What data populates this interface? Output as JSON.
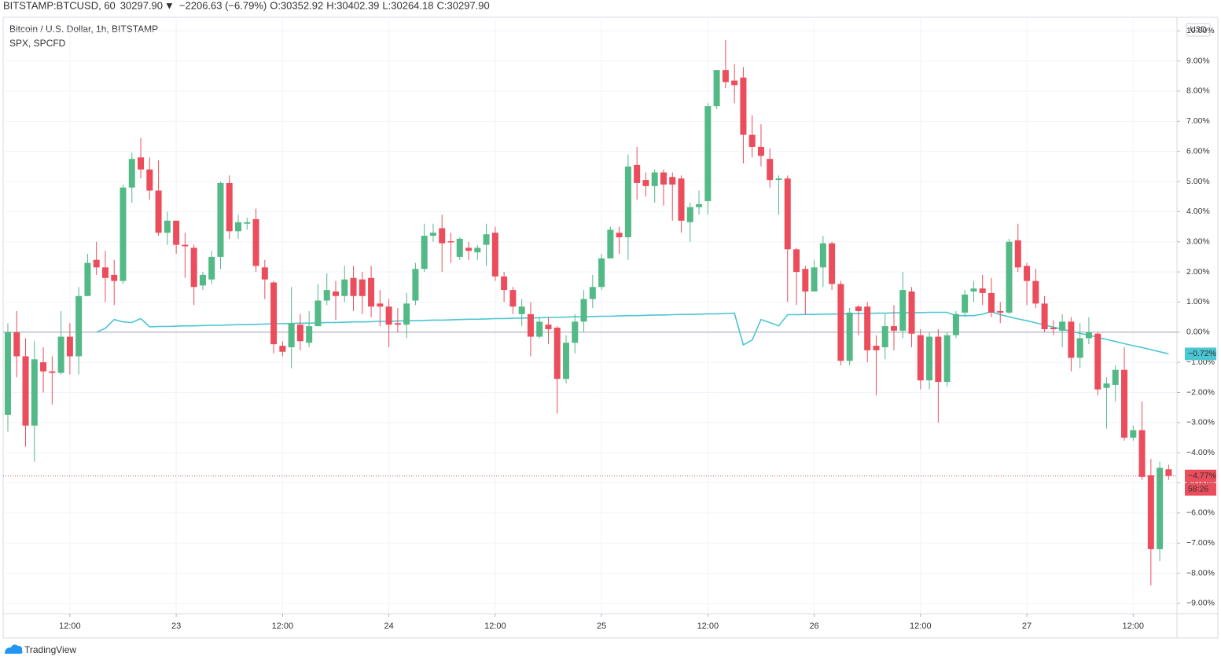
{
  "header": {
    "symbol": "BITSTAMP:BTCUSD, 60",
    "price": "30297.90",
    "arrow": "▼",
    "change": "−2206.63 (−6.79%)",
    "ohlc": [
      {
        "key": "O:",
        "text": "30352.92"
      },
      {
        "key": "H:",
        "text": "30402.39"
      },
      {
        "key": "L:",
        "text": "30264.18"
      },
      {
        "key": "C:",
        "text": "30297.90"
      }
    ]
  },
  "brand": "TradingView",
  "chart_data": {
    "type": "candlestick",
    "unit": "USD",
    "grid": true,
    "ylim": [
      -9.34,
      10.45
    ],
    "yticks": [
      {
        "value": 10,
        "label": "10.00%"
      },
      {
        "value": 9,
        "label": "9.00%"
      },
      {
        "value": 8,
        "label": "8.00%"
      },
      {
        "value": 7,
        "label": "7.00%"
      },
      {
        "value": 6,
        "label": "6.00%"
      },
      {
        "value": 5,
        "label": "5.00%"
      },
      {
        "value": 4,
        "label": "4.00%"
      },
      {
        "value": 3,
        "label": "3.00%"
      },
      {
        "value": 2,
        "label": "2.00%"
      },
      {
        "value": 1,
        "label": "1.00%"
      },
      {
        "value": 0,
        "label": "0.00%"
      },
      {
        "value": -1,
        "label": "−1.00%"
      },
      {
        "value": -2,
        "label": "−2.00%"
      },
      {
        "value": -3,
        "label": "−3.00%"
      },
      {
        "value": -4,
        "label": "−4.00%"
      },
      {
        "value": -5,
        "label": "−5.00%"
      },
      {
        "value": -6,
        "label": "−6.00%"
      },
      {
        "value": -7,
        "label": "−7.00%"
      },
      {
        "value": -8,
        "label": "−8.00%"
      },
      {
        "value": -9,
        "label": "−9.00%"
      }
    ],
    "categories": [
      null,
      null,
      null,
      null,
      null,
      null,
      null,
      "12:00",
      null,
      null,
      null,
      null,
      null,
      null,
      null,
      null,
      null,
      null,
      null,
      "23",
      null,
      null,
      null,
      null,
      null,
      null,
      null,
      null,
      null,
      null,
      null,
      "12:00",
      null,
      null,
      null,
      null,
      null,
      null,
      null,
      null,
      null,
      null,
      null,
      "24",
      null,
      null,
      null,
      null,
      null,
      null,
      null,
      null,
      null,
      null,
      null,
      "12:00",
      null,
      null,
      null,
      null,
      null,
      null,
      null,
      null,
      null,
      null,
      null,
      "25",
      null,
      null,
      null,
      null,
      null,
      null,
      null,
      null,
      null,
      null,
      null,
      "12:00",
      null,
      null,
      null,
      null,
      null,
      null,
      null,
      null,
      null,
      null,
      null,
      "26",
      null,
      null,
      null,
      null,
      null,
      null,
      null,
      null,
      null,
      null,
      null,
      "12:00",
      null,
      null,
      null,
      null,
      null,
      null,
      null,
      null,
      null,
      null,
      null,
      "27",
      null,
      null,
      null,
      null,
      null,
      null,
      null,
      null,
      null,
      null,
      null,
      "12:00",
      null,
      null,
      null,
      null
    ],
    "series": [
      {
        "name": "Bitcoin / U.S. Dollar, 1h, BITSTAMP",
        "type": "candlestick",
        "up_color": "#53b987",
        "down_color": "#eb4d5c",
        "open": [
          -2.74,
          0,
          -0.8,
          -3.1,
          -1.0,
          -1.3,
          -1.35,
          -0.15,
          -0.8,
          1.2,
          2.4,
          2.15,
          1.9,
          1.7,
          4.8,
          5.8,
          5.4,
          4.7,
          3.3,
          3.7,
          2.9,
          2.8,
          1.55,
          1.75,
          2.5,
          4.95,
          3.35,
          3.6,
          3.75,
          2.15,
          1.65,
          -0.45,
          -0.5,
          0.25,
          -0.35,
          0.2,
          1.05,
          1.35,
          1.2,
          1.8,
          1.75,
          1.8,
          0.95,
          0.85,
          0.3,
          0.25,
          1.05,
          2.1,
          3.2,
          3.45,
          3.02,
          2.5,
          2.8,
          2.65,
          2.9,
          3.3,
          1.85,
          1.4,
          0.6,
          0.6,
          -0.15,
          0.25,
          0.15,
          -1.55,
          -0.35,
          0.35,
          1.1,
          1.5,
          2.45,
          3.3,
          3.15,
          5.55,
          5.05,
          4.85,
          5.3,
          5.15,
          5.1,
          3.65,
          4.15,
          4.35,
          7.5,
          8.7,
          8.35,
          8.45,
          6.55,
          6.15,
          5.75,
          5.05,
          5.1,
          2.75,
          2.1,
          1.35,
          2.15,
          2.95,
          1.6,
          -0.95,
          0.85,
          0.85,
          -0.45,
          -0.5,
          0.2,
          0.05,
          1.35,
          -0.1,
          -1.6,
          -0.15,
          -1.65,
          -0.1,
          0.65,
          1.35,
          1.45,
          1.3,
          0.7,
          0.65,
          3.05,
          2.2,
          1.7,
          0.95,
          0.15,
          0.05,
          0.35,
          -0.85,
          -0.2,
          -0.05,
          -1.85,
          -1.75,
          -1.25,
          -3.5,
          -3.25,
          -4.75,
          -7.2,
          -4.55
        ],
        "high": [
          0.3,
          0.7,
          -0.2,
          -0.3,
          -0.5,
          -0.8,
          0.7,
          0.3,
          1.5,
          2.6,
          3.0,
          2.7,
          2.4,
          4.9,
          5.95,
          6.45,
          5.8,
          5.7,
          4.0,
          3.7,
          3.3,
          2.9,
          2.0,
          2.7,
          5.0,
          5.2,
          3.9,
          3.8,
          4.1,
          2.4,
          1.7,
          -0.3,
          1.5,
          0.6,
          0.7,
          1.6,
          1.95,
          1.7,
          2.2,
          2.2,
          2.0,
          2.2,
          1.4,
          1.1,
          0.8,
          1.3,
          2.3,
          3.6,
          3.6,
          3.9,
          3.3,
          3.15,
          3.0,
          2.9,
          3.6,
          3.5,
          2.0,
          1.5,
          1.1,
          1.0,
          0.5,
          0.5,
          0.2,
          -0.1,
          0.6,
          1.4,
          1.9,
          2.6,
          3.5,
          3.5,
          5.9,
          6.15,
          5.3,
          5.4,
          5.4,
          5.3,
          5.2,
          4.3,
          4.7,
          7.6,
          8.7,
          9.7,
          8.9,
          8.8,
          7.2,
          6.9,
          6.1,
          5.2,
          5.2,
          2.8,
          2.2,
          2.4,
          3.2,
          3.0,
          1.7,
          0.8,
          0.9,
          1.0,
          -0.1,
          0.6,
          0.9,
          2.0,
          1.5,
          0.1,
          0.0,
          0.1,
          0.0,
          0.7,
          1.4,
          1.7,
          1.9,
          1.8,
          1.0,
          3.1,
          3.6,
          2.3,
          2.1,
          1.2,
          0.4,
          0.6,
          0.5,
          0.3,
          0.5,
          0.0,
          -1.5,
          -1.1,
          -0.5,
          -3.1,
          -2.3,
          -4.2,
          -4.3,
          -4.4
        ],
        "low": [
          -3.3,
          -1.5,
          -3.8,
          -4.3,
          -2.0,
          -2.4,
          -1.4,
          -1.4,
          -1.4,
          1.2,
          1.9,
          1.0,
          0.9,
          1.6,
          4.3,
          5.1,
          4.4,
          3.2,
          2.9,
          2.6,
          1.8,
          0.9,
          1.4,
          1.6,
          2.1,
          3.1,
          3.1,
          3.4,
          2.0,
          1.1,
          -0.7,
          -0.8,
          -1.2,
          -0.6,
          -0.5,
          0.2,
          0.9,
          0.4,
          1.0,
          0.7,
          0.6,
          0.5,
          0.2,
          -0.5,
          0.0,
          -0.2,
          0.9,
          2.0,
          3.0,
          2.0,
          2.3,
          2.4,
          2.4,
          2.4,
          2.2,
          1.7,
          1.0,
          0.6,
          0.2,
          -0.8,
          -0.2,
          -0.4,
          -2.7,
          -1.7,
          -0.7,
          0.0,
          0.8,
          1.4,
          2.5,
          2.6,
          2.4,
          4.4,
          4.5,
          4.3,
          4.2,
          3.7,
          3.3,
          3.0,
          3.9,
          3.9,
          7.4,
          8.1,
          7.6,
          5.6,
          5.8,
          5.5,
          4.8,
          3.9,
          1.0,
          0.9,
          0.6,
          1.4,
          1.5,
          1.4,
          -1.1,
          -1.1,
          -0.1,
          -1.0,
          -2.1,
          -0.9,
          -0.6,
          -0.2,
          -0.5,
          -1.9,
          -1.9,
          -3.0,
          -1.8,
          -0.2,
          0.5,
          1.0,
          0.9,
          0.5,
          0.3,
          0.6,
          2.0,
          0.9,
          0.8,
          0.0,
          -0.1,
          -0.5,
          -1.3,
          -1.2,
          -0.4,
          -2.1,
          -3.2,
          -2.3,
          -3.6,
          -3.6,
          -4.9,
          -8.4,
          -7.6,
          -4.9
        ],
        "close": [
          0,
          -0.8,
          -3.1,
          -0.9,
          -1.3,
          -1.35,
          -0.15,
          -0.8,
          1.2,
          2.3,
          2.15,
          1.8,
          1.7,
          4.8,
          5.75,
          5.4,
          4.7,
          3.3,
          3.7,
          2.9,
          2.85,
          1.5,
          1.9,
          2.5,
          4.95,
          3.35,
          3.65,
          3.65,
          2.2,
          1.75,
          -0.4,
          -0.65,
          0.3,
          -0.3,
          0.2,
          1.05,
          1.4,
          1.2,
          1.75,
          1.2,
          1.2,
          0.85,
          0.85,
          0.25,
          0.25,
          0.95,
          2.1,
          3.2,
          3.3,
          2.95,
          2.98,
          3.1,
          2.7,
          2.8,
          3.25,
          1.85,
          1.4,
          0.85,
          0.85,
          -0.15,
          0.35,
          0.1,
          -1.55,
          -0.35,
          0.35,
          1.1,
          1.5,
          2.45,
          3.4,
          3.15,
          5.5,
          4.95,
          4.85,
          5.3,
          4.9,
          4.9,
          3.7,
          4.15,
          4.25,
          7.5,
          8.7,
          8.3,
          8.2,
          6.55,
          6.15,
          5.85,
          5.05,
          5.1,
          2.75,
          2.0,
          1.35,
          2.15,
          2.95,
          1.6,
          -0.95,
          0.65,
          0.7,
          -0.6,
          -0.6,
          0.2,
          0.05,
          1.4,
          -0.05,
          -1.6,
          -0.15,
          -1.65,
          -0.1,
          0.6,
          1.25,
          1.45,
          1.3,
          0.65,
          0.65,
          3.0,
          2.15,
          1.7,
          0.95,
          0.1,
          0.1,
          0.35,
          -0.85,
          -0.2,
          0.0,
          -1.9,
          -1.7,
          -1.25,
          -3.5,
          -3.25,
          -4.8,
          -7.2,
          -4.5,
          -4.77
        ],
        "last_label": "−4.77%",
        "countdown": "58:26"
      },
      {
        "name": "SPX, SPCFD",
        "type": "line",
        "color": "#4bc6d3",
        "values": [
          null,
          null,
          null,
          null,
          null,
          null,
          null,
          null,
          null,
          null,
          0.0,
          0.13,
          0.42,
          0.34,
          0.32,
          0.45,
          0.18,
          0.19,
          0.19,
          0.2,
          0.21,
          0.21,
          0.22,
          0.23,
          0.23,
          0.24,
          0.25,
          0.25,
          0.26,
          0.27,
          0.28,
          0.28,
          0.29,
          0.3,
          0.3,
          0.31,
          0.32,
          0.32,
          0.33,
          0.34,
          0.34,
          0.35,
          0.36,
          0.36,
          0.37,
          0.38,
          0.38,
          0.39,
          0.4,
          0.4,
          0.41,
          0.42,
          0.43,
          0.43,
          0.44,
          0.45,
          0.45,
          0.46,
          0.47,
          0.47,
          0.48,
          0.49,
          0.49,
          0.5,
          0.51,
          0.51,
          0.52,
          0.53,
          0.53,
          0.54,
          0.55,
          0.55,
          0.56,
          0.57,
          0.57,
          0.58,
          0.59,
          0.59,
          0.6,
          0.61,
          0.61,
          0.62,
          0.63,
          -0.42,
          -0.26,
          0.42,
          0.32,
          0.21,
          0.58,
          0.58,
          0.59,
          0.59,
          0.6,
          0.6,
          0.61,
          0.61,
          0.62,
          0.62,
          0.63,
          0.63,
          0.64,
          0.64,
          0.65,
          0.65,
          0.66,
          0.66,
          0.66,
          0.55,
          0.55,
          0.55,
          0.6,
          0.68,
          0.58,
          0.51,
          0.44,
          0.38,
          0.31,
          0.24,
          0.17,
          0.1,
          0.03,
          -0.04,
          -0.1,
          -0.17,
          -0.24,
          -0.31,
          -0.38,
          -0.45,
          -0.51,
          -0.58,
          -0.65,
          -0.72
        ],
        "last_label": "−0.72%"
      }
    ]
  }
}
